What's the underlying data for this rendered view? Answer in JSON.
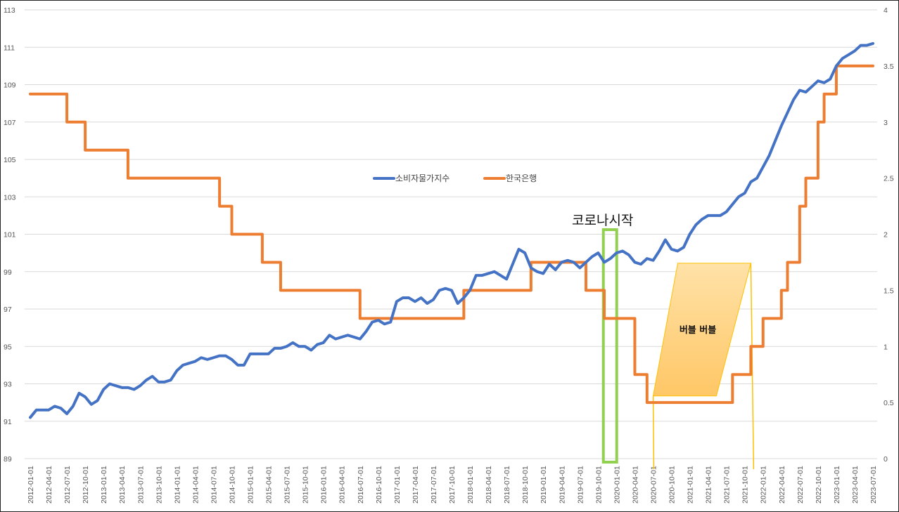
{
  "chart_data": {
    "type": "line",
    "x": [
      "2012-01-01",
      "2012-02-01",
      "2012-03-01",
      "2012-04-01",
      "2012-05-01",
      "2012-06-01",
      "2012-07-01",
      "2012-08-01",
      "2012-09-01",
      "2012-10-01",
      "2012-11-01",
      "2012-12-01",
      "2013-01-01",
      "2013-02-01",
      "2013-03-01",
      "2013-04-01",
      "2013-05-01",
      "2013-06-01",
      "2013-07-01",
      "2013-08-01",
      "2013-09-01",
      "2013-10-01",
      "2013-11-01",
      "2013-12-01",
      "2014-01-01",
      "2014-02-01",
      "2014-03-01",
      "2014-04-01",
      "2014-05-01",
      "2014-06-01",
      "2014-07-01",
      "2014-08-01",
      "2014-09-01",
      "2014-10-01",
      "2014-11-01",
      "2014-12-01",
      "2015-01-01",
      "2015-02-01",
      "2015-03-01",
      "2015-04-01",
      "2015-05-01",
      "2015-06-01",
      "2015-07-01",
      "2015-08-01",
      "2015-09-01",
      "2015-10-01",
      "2015-11-01",
      "2015-12-01",
      "2016-01-01",
      "2016-02-01",
      "2016-03-01",
      "2016-04-01",
      "2016-05-01",
      "2016-06-01",
      "2016-07-01",
      "2016-08-01",
      "2016-09-01",
      "2016-10-01",
      "2016-11-01",
      "2016-12-01",
      "2017-01-01",
      "2017-02-01",
      "2017-03-01",
      "2017-04-01",
      "2017-05-01",
      "2017-06-01",
      "2017-07-01",
      "2017-08-01",
      "2017-09-01",
      "2017-10-01",
      "2017-11-01",
      "2017-12-01",
      "2018-01-01",
      "2018-02-01",
      "2018-03-01",
      "2018-04-01",
      "2018-05-01",
      "2018-06-01",
      "2018-07-01",
      "2018-08-01",
      "2018-09-01",
      "2018-10-01",
      "2018-11-01",
      "2018-12-01",
      "2019-01-01",
      "2019-02-01",
      "2019-03-01",
      "2019-04-01",
      "2019-05-01",
      "2019-06-01",
      "2019-07-01",
      "2019-08-01",
      "2019-09-01",
      "2019-10-01",
      "2019-11-01",
      "2019-12-01",
      "2020-01-01",
      "2020-02-01",
      "2020-03-01",
      "2020-04-01",
      "2020-05-01",
      "2020-06-01",
      "2020-07-01",
      "2020-08-01",
      "2020-09-01",
      "2020-10-01",
      "2020-11-01",
      "2020-12-01",
      "2021-01-01",
      "2021-02-01",
      "2021-03-01",
      "2021-04-01",
      "2021-05-01",
      "2021-06-01",
      "2021-07-01",
      "2021-08-01",
      "2021-09-01",
      "2021-10-01",
      "2021-11-01",
      "2021-12-01",
      "2022-01-01",
      "2022-02-01",
      "2022-03-01",
      "2022-04-01",
      "2022-05-01",
      "2022-06-01",
      "2022-07-01",
      "2022-08-01",
      "2022-09-01",
      "2022-10-01",
      "2022-11-01",
      "2022-12-01",
      "2023-01-01",
      "2023-02-01",
      "2023-03-01",
      "2023-04-01",
      "2023-05-01",
      "2023-06-01",
      "2023-07-01"
    ],
    "x_tick_labels": [
      "2012-01-01",
      "2012-04-01",
      "2012-07-01",
      "2012-10-01",
      "2013-01-01",
      "2013-04-01",
      "2013-07-01",
      "2013-10-01",
      "2014-01-01",
      "2014-04-01",
      "2014-07-01",
      "2014-10-01",
      "2015-01-01",
      "2015-04-01",
      "2015-07-01",
      "2015-10-01",
      "2016-01-01",
      "2016-04-01",
      "2016-07-01",
      "2016-10-01",
      "2017-01-01",
      "2017-04-01",
      "2017-07-01",
      "2017-10-01",
      "2018-01-01",
      "2018-04-01",
      "2018-07-01",
      "2018-10-01",
      "2019-01-01",
      "2019-04-01",
      "2019-07-01",
      "2019-10-01",
      "2020-01-01",
      "2020-04-01",
      "2020-07-01",
      "2020-10-01",
      "2021-01-01",
      "2021-04-01",
      "2021-07-01",
      "2021-10-01",
      "2022-01-01",
      "2022-04-01",
      "2022-07-01",
      "2022-10-01",
      "2023-01-01",
      "2023-04-01",
      "2023-07-01"
    ],
    "series": [
      {
        "name": "소비자물가지수",
        "axis": "left",
        "color": "#4472C4",
        "values": [
          91.2,
          91.6,
          91.6,
          91.6,
          91.8,
          91.7,
          91.4,
          91.8,
          92.5,
          92.3,
          91.9,
          92.1,
          92.7,
          93.0,
          92.9,
          92.8,
          92.8,
          92.7,
          92.9,
          93.2,
          93.4,
          93.1,
          93.1,
          93.2,
          93.7,
          94.0,
          94.1,
          94.2,
          94.4,
          94.3,
          94.4,
          94.5,
          94.5,
          94.3,
          94.0,
          94.0,
          94.6,
          94.6,
          94.6,
          94.6,
          94.9,
          94.9,
          95.0,
          95.2,
          95.0,
          95.0,
          94.8,
          95.1,
          95.2,
          95.6,
          95.4,
          95.5,
          95.6,
          95.5,
          95.4,
          95.8,
          96.3,
          96.4,
          96.2,
          96.3,
          97.4,
          97.6,
          97.6,
          97.4,
          97.6,
          97.3,
          97.5,
          98.0,
          98.1,
          98.0,
          97.3,
          97.6,
          98.0,
          98.8,
          98.8,
          98.9,
          99.0,
          98.8,
          98.6,
          99.4,
          100.2,
          100.0,
          99.2,
          99.0,
          98.9,
          99.4,
          99.1,
          99.5,
          99.6,
          99.5,
          99.2,
          99.5,
          99.8,
          100.0,
          99.5,
          99.7,
          100.0,
          100.1,
          99.9,
          99.5,
          99.4,
          99.7,
          99.6,
          100.1,
          100.7,
          100.2,
          100.1,
          100.3,
          101.0,
          101.5,
          101.8,
          102.0,
          102.0,
          102.0,
          102.2,
          102.6,
          103.0,
          103.2,
          103.8,
          104.0,
          104.6,
          105.2,
          106.0,
          106.8,
          107.5,
          108.2,
          108.7,
          108.6,
          108.9,
          109.2,
          109.1,
          109.3,
          110.0,
          110.4,
          110.6,
          110.8,
          111.1,
          111.1,
          111.2
        ]
      },
      {
        "name": "한국은행",
        "axis": "right",
        "color": "#ED7D31",
        "values": [
          3.25,
          3.25,
          3.25,
          3.25,
          3.25,
          3.25,
          3.0,
          3.0,
          3.0,
          2.75,
          2.75,
          2.75,
          2.75,
          2.75,
          2.75,
          2.75,
          2.5,
          2.5,
          2.5,
          2.5,
          2.5,
          2.5,
          2.5,
          2.5,
          2.5,
          2.5,
          2.5,
          2.5,
          2.5,
          2.5,
          2.5,
          2.25,
          2.25,
          2.0,
          2.0,
          2.0,
          2.0,
          2.0,
          1.75,
          1.75,
          1.75,
          1.5,
          1.5,
          1.5,
          1.5,
          1.5,
          1.5,
          1.5,
          1.5,
          1.5,
          1.5,
          1.5,
          1.5,
          1.5,
          1.25,
          1.25,
          1.25,
          1.25,
          1.25,
          1.25,
          1.25,
          1.25,
          1.25,
          1.25,
          1.25,
          1.25,
          1.25,
          1.25,
          1.25,
          1.25,
          1.25,
          1.5,
          1.5,
          1.5,
          1.5,
          1.5,
          1.5,
          1.5,
          1.5,
          1.5,
          1.5,
          1.5,
          1.75,
          1.75,
          1.75,
          1.75,
          1.75,
          1.75,
          1.75,
          1.75,
          1.75,
          1.5,
          1.5,
          1.5,
          1.25,
          1.25,
          1.25,
          1.25,
          1.25,
          0.75,
          0.75,
          0.5,
          0.5,
          0.5,
          0.5,
          0.5,
          0.5,
          0.5,
          0.5,
          0.5,
          0.5,
          0.5,
          0.5,
          0.5,
          0.5,
          0.75,
          0.75,
          0.75,
          1.0,
          1.0,
          1.25,
          1.25,
          1.25,
          1.5,
          1.75,
          1.75,
          2.25,
          2.5,
          2.5,
          3.0,
          3.25,
          3.25,
          3.5,
          3.5,
          3.5,
          3.5,
          3.5,
          3.5,
          3.5
        ]
      }
    ],
    "y_left": {
      "ylim": [
        89,
        113
      ],
      "ticks": [
        "89",
        "91",
        "93",
        "95",
        "97",
        "99",
        "101",
        "103",
        "105",
        "107",
        "109",
        "111",
        "113"
      ]
    },
    "y_right": {
      "ylim": [
        0,
        4
      ],
      "ticks": [
        "0",
        "0.5",
        "1",
        "1.5",
        "2",
        "2.5",
        "3",
        "3.5",
        "4"
      ]
    },
    "grid": true,
    "legend_position": "top-center",
    "annotations": {
      "corona": {
        "label": "코로나시작",
        "x": "2019-12-01",
        "color": "#92D050"
      },
      "bubble": {
        "label": "버블 버블",
        "x_start": "2020-07-01",
        "x_end": "2021-11-01",
        "color": "#FFC000"
      }
    }
  }
}
